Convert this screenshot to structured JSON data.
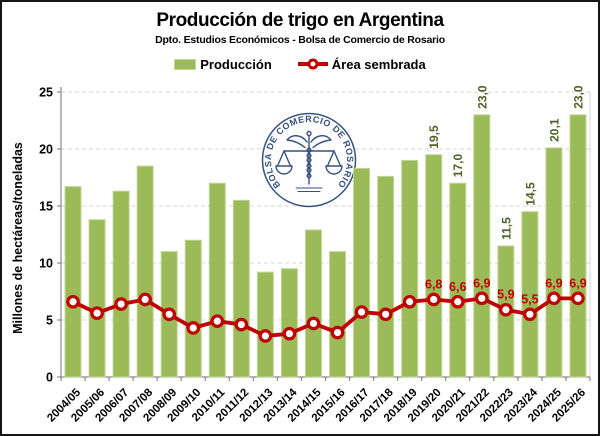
{
  "header": {
    "title": "Producción de trigo en Argentina",
    "subtitle": "Dpto. Estudios Económicos - Bolsa de Comercio de Rosario"
  },
  "legend": {
    "production_label": "Producción",
    "area_label": "Área sembrada"
  },
  "logo": {
    "text": "BOLSA DE COMERCIO DE ROSARIO"
  },
  "colors": {
    "bar_fill": "#9BBB59",
    "bar_edge": "#C3D69B",
    "bar_label": "#4F6228",
    "line": "#C00000",
    "grid": "#D6D6D6",
    "axis": "#8A8A8A",
    "logo": "#35517E",
    "text": "#000000"
  },
  "chart_data": {
    "type": "bar",
    "title": "Producción de trigo en Argentina",
    "subtitle": "Dpto. Estudios Económicos - Bolsa de Comercio de Rosario",
    "xlabel": "",
    "ylabel": "Millones de hectáreas/toneladas",
    "ylim": [
      0,
      25
    ],
    "yticks": [
      0,
      5,
      10,
      15,
      20,
      25
    ],
    "grid": true,
    "legend_position": "top",
    "categories": [
      "2004/05",
      "2005/06",
      "2006/07",
      "2007/08",
      "2008/09",
      "2009/10",
      "2010/11",
      "2011/12",
      "2012/13",
      "2013/14",
      "2014/15",
      "2015/16",
      "2016/17",
      "2017/18",
      "2018/19",
      "2019/20",
      "2020/21",
      "2021/22",
      "2022/23",
      "2023/24",
      "2024/25",
      "2025/26"
    ],
    "series": [
      {
        "name": "Producción",
        "type": "bar",
        "color": "#9BBB59",
        "values": [
          16.7,
          13.8,
          16.3,
          18.5,
          11.0,
          12.0,
          17.0,
          15.5,
          9.2,
          9.5,
          12.9,
          11.0,
          18.3,
          17.6,
          19.0,
          19.5,
          17.0,
          23.0,
          11.5,
          14.5,
          20.1,
          23.0
        ],
        "point_labels": [
          null,
          null,
          null,
          null,
          null,
          null,
          null,
          null,
          null,
          null,
          null,
          null,
          null,
          null,
          null,
          "19,5",
          "17,0",
          "23,0",
          "11,5",
          "14,5",
          "20,1",
          "23,0"
        ]
      },
      {
        "name": "Área sembrada",
        "type": "line",
        "color": "#C00000",
        "values": [
          6.6,
          5.6,
          6.4,
          6.8,
          5.5,
          4.3,
          4.9,
          4.6,
          3.6,
          3.8,
          4.7,
          3.9,
          5.7,
          5.5,
          6.6,
          6.8,
          6.6,
          6.9,
          5.9,
          5.5,
          6.9,
          6.9
        ],
        "point_labels": [
          null,
          null,
          null,
          null,
          null,
          null,
          null,
          null,
          null,
          null,
          null,
          null,
          null,
          null,
          null,
          "6,8",
          "6,6",
          "6,9",
          "5,9",
          "5,5",
          "6,9",
          "6,9"
        ]
      }
    ]
  }
}
